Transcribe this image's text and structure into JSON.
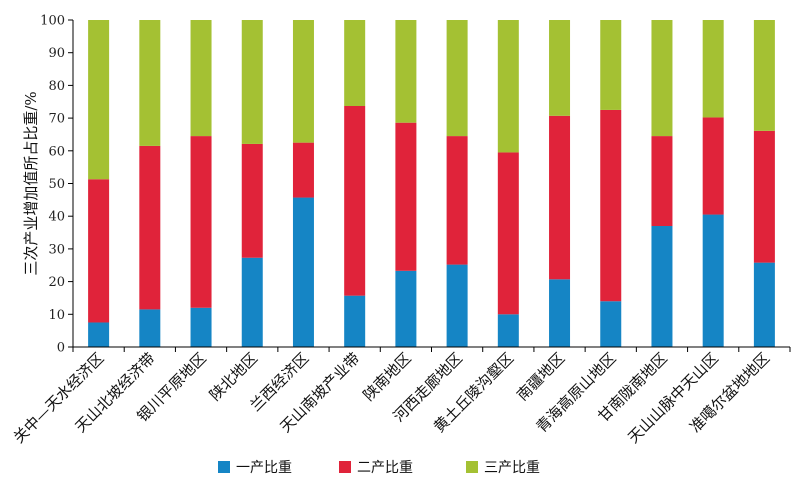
{
  "chart_data": {
    "type": "bar",
    "stacked": true,
    "categories": [
      "关中—天水经济区",
      "天山北坡经济带",
      "银川平原地区",
      "陕北地区",
      "兰西经济区",
      "天山南坡产业带",
      "陕南地区",
      "河西走廊地区",
      "黄土丘陵沟壑区",
      "南疆地区",
      "青海高原山地区",
      "甘南陇南地区",
      "天山山脉中天山区",
      "准噶尔盆地地区"
    ],
    "series": [
      {
        "name": "一产比重",
        "color": "#1585c5",
        "values": [
          7.5,
          11.5,
          12,
          27.3,
          45.7,
          15.7,
          23.3,
          25.2,
          10,
          20.7,
          14,
          37,
          40.5,
          25.8
        ]
      },
      {
        "name": "二产比重",
        "color": "#e0233a",
        "values": [
          43.8,
          50,
          52.5,
          34.8,
          16.8,
          58,
          45.3,
          39.3,
          49.5,
          50,
          58.5,
          27.5,
          29.7,
          40.3
        ]
      },
      {
        "name": "三产比重",
        "color": "#a4c133",
        "values": [
          48.7,
          38.5,
          35.5,
          37.9,
          37.5,
          26.3,
          31.4,
          35.5,
          40.5,
          29.3,
          27.5,
          35.5,
          29.8,
          33.9
        ]
      }
    ],
    "ylabel": "三次产业增加值所占比重/%",
    "xlabel": "",
    "ylim": [
      0,
      100
    ],
    "yticks": [
      0,
      10,
      20,
      30,
      40,
      50,
      60,
      70,
      80,
      90,
      100
    ],
    "legend_position": "bottom",
    "grid": false
  }
}
